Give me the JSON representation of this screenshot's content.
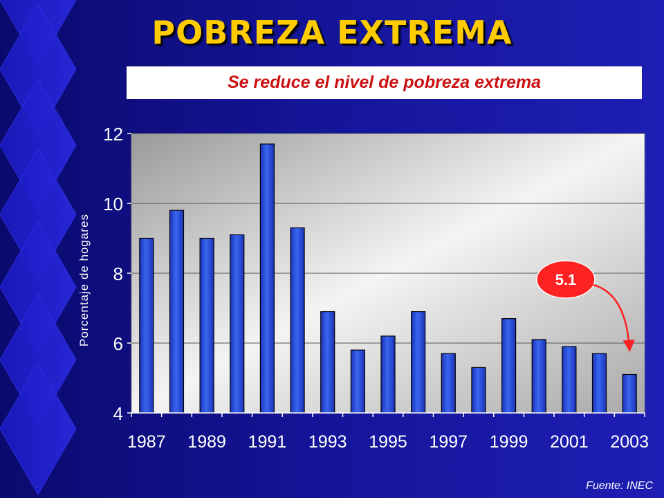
{
  "slide": {
    "title": "POBREZA EXTREMA",
    "subtitle": "Se reduce el nivel de pobreza extrema",
    "source": "Fuente: INEC"
  },
  "chart_data": {
    "type": "bar",
    "title": "",
    "xlabel": "",
    "ylabel": "Porcentaje de hogares",
    "categories": [
      "1987",
      "1988",
      "1989",
      "1990",
      "1991",
      "1992",
      "1993",
      "1994",
      "1995",
      "1996",
      "1997",
      "1998",
      "1999",
      "2000",
      "2001",
      "2002",
      "2003"
    ],
    "x_tick_labels": [
      "1987",
      "1989",
      "1991",
      "1993",
      "1995",
      "1997",
      "1999",
      "2001",
      "2003"
    ],
    "values": [
      9.0,
      9.8,
      9.0,
      9.1,
      11.7,
      9.3,
      6.9,
      5.8,
      6.2,
      6.9,
      5.7,
      5.3,
      6.7,
      6.1,
      5.9,
      5.7,
      5.1
    ],
    "ylim": [
      4,
      12
    ],
    "yticks": [
      4,
      6,
      8,
      10,
      12
    ],
    "grid": true,
    "legend": "none",
    "annotation": {
      "text": "5.1",
      "target_category": "2003"
    },
    "colors": {
      "bar": "#1f3fd6",
      "bar_highlight": "#4f7bff",
      "annotation_fill": "#ff2222",
      "arrow": "#ff2222",
      "title": "#ffcc00",
      "subtitle": "#cc1111"
    }
  }
}
